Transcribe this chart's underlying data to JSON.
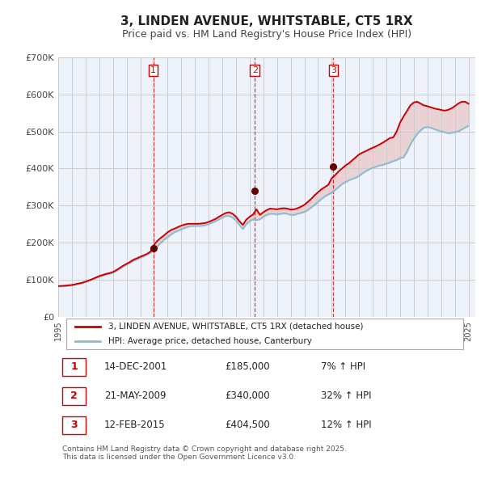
{
  "title": "3, LINDEN AVENUE, WHITSTABLE, CT5 1RX",
  "subtitle": "Price paid vs. HM Land Registry's House Price Index (HPI)",
  "ylim": [
    0,
    700000
  ],
  "yticks": [
    0,
    100000,
    200000,
    300000,
    400000,
    500000,
    600000,
    700000
  ],
  "ytick_labels": [
    "£0",
    "£100K",
    "£200K",
    "£300K",
    "£400K",
    "£500K",
    "£600K",
    "£700K"
  ],
  "plot_bg_color": "#eef2fb",
  "grid_color": "#cccccc",
  "sale_color": "#cc0000",
  "hpi_color": "#87bcd4",
  "sale_label": "3, LINDEN AVENUE, WHITSTABLE, CT5 1RX (detached house)",
  "hpi_label": "HPI: Average price, detached house, Canterbury",
  "transactions": [
    {
      "num": 1,
      "date": "14-DEC-2001",
      "price": 185000,
      "pct": "7%",
      "x_year": 2001.95
    },
    {
      "num": 2,
      "date": "21-MAY-2009",
      "price": 340000,
      "pct": "32%",
      "x_year": 2009.38
    },
    {
      "num": 3,
      "date": "12-FEB-2015",
      "price": 404500,
      "pct": "12%",
      "x_year": 2015.12
    }
  ],
  "footnote": "Contains HM Land Registry data © Crown copyright and database right 2025.\nThis data is licensed under the Open Government Licence v3.0.",
  "hpi_data_x": [
    1995.0,
    1995.25,
    1995.5,
    1995.75,
    1996.0,
    1996.25,
    1996.5,
    1996.75,
    1997.0,
    1997.25,
    1997.5,
    1997.75,
    1998.0,
    1998.25,
    1998.5,
    1998.75,
    1999.0,
    1999.25,
    1999.5,
    1999.75,
    2000.0,
    2000.25,
    2000.5,
    2000.75,
    2001.0,
    2001.25,
    2001.5,
    2001.75,
    2002.0,
    2002.25,
    2002.5,
    2002.75,
    2003.0,
    2003.25,
    2003.5,
    2003.75,
    2004.0,
    2004.25,
    2004.5,
    2004.75,
    2005.0,
    2005.25,
    2005.5,
    2005.75,
    2006.0,
    2006.25,
    2006.5,
    2006.75,
    2007.0,
    2007.25,
    2007.5,
    2007.75,
    2008.0,
    2008.25,
    2008.5,
    2008.75,
    2009.0,
    2009.25,
    2009.5,
    2009.75,
    2010.0,
    2010.25,
    2010.5,
    2010.75,
    2011.0,
    2011.25,
    2011.5,
    2011.75,
    2012.0,
    2012.25,
    2012.5,
    2012.75,
    2013.0,
    2013.25,
    2013.5,
    2013.75,
    2014.0,
    2014.25,
    2014.5,
    2014.75,
    2015.0,
    2015.25,
    2015.5,
    2015.75,
    2016.0,
    2016.25,
    2016.5,
    2016.75,
    2017.0,
    2017.25,
    2017.5,
    2017.75,
    2018.0,
    2018.25,
    2018.5,
    2018.75,
    2019.0,
    2019.25,
    2019.5,
    2019.75,
    2020.0,
    2020.25,
    2020.5,
    2020.75,
    2021.0,
    2021.25,
    2021.5,
    2021.75,
    2022.0,
    2022.25,
    2022.5,
    2022.75,
    2023.0,
    2023.25,
    2023.5,
    2023.75,
    2024.0,
    2024.25,
    2024.5,
    2024.75,
    2025.0
  ],
  "hpi_data_y": [
    82000,
    82500,
    83000,
    84000,
    85000,
    87000,
    89000,
    91000,
    94000,
    97000,
    101000,
    105000,
    108000,
    111000,
    114000,
    116000,
    119000,
    124000,
    130000,
    136000,
    141000,
    146000,
    151000,
    155000,
    159000,
    163000,
    168000,
    173000,
    180000,
    190000,
    200000,
    208000,
    215000,
    222000,
    228000,
    232000,
    236000,
    240000,
    243000,
    245000,
    245000,
    245000,
    246000,
    247000,
    250000,
    254000,
    258000,
    263000,
    268000,
    272000,
    272000,
    268000,
    260000,
    248000,
    237000,
    250000,
    258000,
    263000,
    261000,
    263000,
    270000,
    275000,
    278000,
    278000,
    276000,
    278000,
    279000,
    278000,
    275000,
    275000,
    278000,
    280000,
    283000,
    288000,
    295000,
    302000,
    310000,
    318000,
    325000,
    330000,
    335000,
    342000,
    350000,
    358000,
    363000,
    368000,
    372000,
    375000,
    380000,
    387000,
    393000,
    398000,
    402000,
    405000,
    408000,
    410000,
    413000,
    416000,
    420000,
    423000,
    428000,
    430000,
    445000,
    465000,
    480000,
    493000,
    503000,
    510000,
    512000,
    510000,
    506000,
    503000,
    500000,
    498000,
    495000,
    496000,
    498000,
    500000,
    505000,
    510000,
    515000
  ],
  "sale_data_x": [
    1995.0,
    1995.25,
    1995.5,
    1995.75,
    1996.0,
    1996.25,
    1996.5,
    1996.75,
    1997.0,
    1997.25,
    1997.5,
    1997.75,
    1998.0,
    1998.25,
    1998.5,
    1998.75,
    1999.0,
    1999.25,
    1999.5,
    1999.75,
    2000.0,
    2000.25,
    2000.5,
    2000.75,
    2001.0,
    2001.25,
    2001.5,
    2001.75,
    2002.0,
    2002.25,
    2002.5,
    2002.75,
    2003.0,
    2003.25,
    2003.5,
    2003.75,
    2004.0,
    2004.25,
    2004.5,
    2004.75,
    2005.0,
    2005.25,
    2005.5,
    2005.75,
    2006.0,
    2006.25,
    2006.5,
    2006.75,
    2007.0,
    2007.25,
    2007.5,
    2007.75,
    2008.0,
    2008.25,
    2008.5,
    2008.75,
    2009.0,
    2009.25,
    2009.5,
    2009.75,
    2010.0,
    2010.25,
    2010.5,
    2010.75,
    2011.0,
    2011.25,
    2011.5,
    2011.75,
    2012.0,
    2012.25,
    2012.5,
    2012.75,
    2013.0,
    2013.25,
    2013.5,
    2013.75,
    2014.0,
    2014.25,
    2014.5,
    2014.75,
    2015.0,
    2015.25,
    2015.5,
    2015.75,
    2016.0,
    2016.25,
    2016.5,
    2016.75,
    2017.0,
    2017.25,
    2017.5,
    2017.75,
    2018.0,
    2018.25,
    2018.5,
    2018.75,
    2019.0,
    2019.25,
    2019.5,
    2019.75,
    2020.0,
    2020.25,
    2020.5,
    2020.75,
    2021.0,
    2021.25,
    2021.5,
    2021.75,
    2022.0,
    2022.25,
    2022.5,
    2022.75,
    2023.0,
    2023.25,
    2023.5,
    2023.75,
    2024.0,
    2024.25,
    2024.5,
    2024.75,
    2025.0
  ],
  "sale_data_y": [
    83000,
    83500,
    84000,
    85000,
    86000,
    88000,
    90000,
    92000,
    95000,
    98500,
    102000,
    106000,
    110000,
    113000,
    116000,
    118000,
    121000,
    126000,
    132000,
    138000,
    143000,
    148000,
    154000,
    158000,
    162000,
    166000,
    170000,
    176000,
    194000,
    205000,
    213000,
    220000,
    228000,
    234000,
    238000,
    242000,
    246000,
    249000,
    251000,
    251000,
    251000,
    251000,
    252000,
    253000,
    256000,
    260000,
    264000,
    270000,
    275000,
    280000,
    282000,
    278000,
    270000,
    258000,
    248000,
    262000,
    270000,
    276000,
    290000,
    275000,
    282000,
    288000,
    292000,
    291000,
    290000,
    292000,
    293000,
    292000,
    289000,
    290000,
    293000,
    297000,
    302000,
    310000,
    318000,
    328000,
    336000,
    344000,
    350000,
    356000,
    374000,
    382000,
    392000,
    400000,
    408000,
    414000,
    422000,
    430000,
    438000,
    443000,
    447000,
    452000,
    456000,
    460000,
    465000,
    470000,
    476000,
    482000,
    484000,
    500000,
    524000,
    540000,
    555000,
    570000,
    578000,
    580000,
    575000,
    570000,
    568000,
    565000,
    562000,
    560000,
    558000,
    556000,
    558000,
    562000,
    568000,
    575000,
    580000,
    580000,
    575000
  ],
  "xlim": [
    1995,
    2025.5
  ],
  "xticks": [
    1995,
    1996,
    1997,
    1998,
    1999,
    2000,
    2001,
    2002,
    2003,
    2004,
    2005,
    2006,
    2007,
    2008,
    2009,
    2010,
    2011,
    2012,
    2013,
    2014,
    2015,
    2016,
    2017,
    2018,
    2019,
    2020,
    2021,
    2022,
    2023,
    2024,
    2025
  ]
}
